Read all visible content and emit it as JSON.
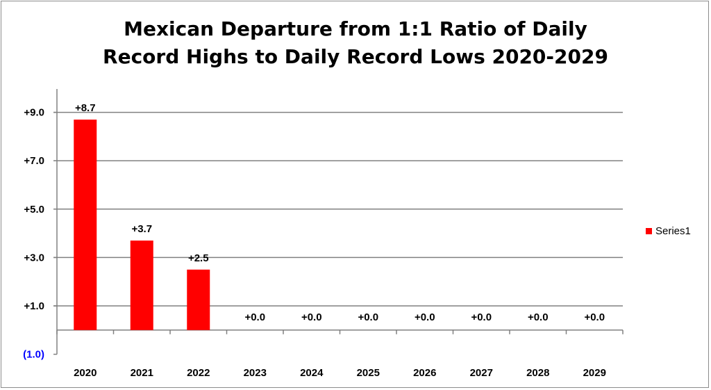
{
  "chart_data": {
    "type": "bar",
    "title_lines": [
      "Mexican Departure from 1:1 Ratio of Daily",
      "Record Highs to Daily Record Lows 2020-2029"
    ],
    "categories": [
      "2020",
      "2021",
      "2022",
      "2023",
      "2024",
      "2025",
      "2026",
      "2027",
      "2028",
      "2029"
    ],
    "series": [
      {
        "name": "Series1",
        "values": [
          8.7,
          3.7,
          2.5,
          0.0,
          0.0,
          0.0,
          0.0,
          0.0,
          0.0,
          0.0
        ],
        "data_labels": [
          "+8.7",
          "+3.7",
          "+2.5",
          "+0.0",
          "+0.0",
          "+0.0",
          "+0.0",
          "+0.0",
          "+0.0",
          "+0.0"
        ],
        "color": "#ff0000"
      }
    ],
    "y_ticks": [
      {
        "value": 9,
        "label": "+9.0"
      },
      {
        "value": 7,
        "label": "+7.0"
      },
      {
        "value": 5,
        "label": "+5.0"
      },
      {
        "value": 3,
        "label": "+3.0"
      },
      {
        "value": 1,
        "label": "+1.0"
      },
      {
        "value": -1,
        "label": "(1.0)"
      }
    ],
    "ylim": [
      -1,
      10
    ],
    "negative_tick_color": "#0000ff",
    "grid": true,
    "legend_position": "right",
    "xlabel": "",
    "ylabel": ""
  }
}
